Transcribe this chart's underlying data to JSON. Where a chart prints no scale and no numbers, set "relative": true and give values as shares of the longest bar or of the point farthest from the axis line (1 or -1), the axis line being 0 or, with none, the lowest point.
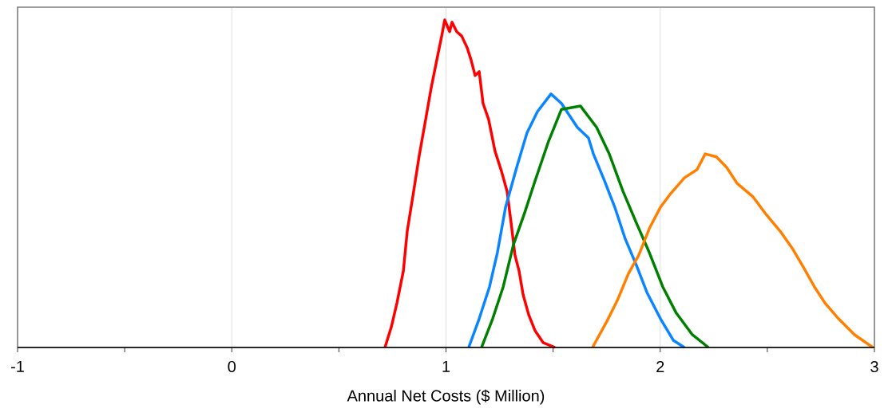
{
  "chart_data": {
    "type": "line",
    "relative": true,
    "xlabel": "Annual Net Costs ($ Million)",
    "xlim": [
      -1,
      3
    ],
    "xticks": [
      -1,
      {
        "value": -0.5,
        "label": null
      },
      0,
      {
        "value": 0.5,
        "label": null
      },
      1,
      {
        "value": 1.5,
        "label": null
      },
      2,
      {
        "value": 2.5,
        "label": null
      },
      3
    ],
    "grid": "x",
    "marker": "none",
    "line_style": "solid",
    "series": [
      {
        "color": "#ff0000",
        "x": [
          0.715,
          0.745,
          0.771,
          0.801,
          0.819,
          0.849,
          0.875,
          0.905,
          0.931,
          0.961,
          0.98,
          0.994,
          1.017,
          1.028,
          1.05,
          1.073,
          1.099,
          1.117,
          1.136,
          1.155,
          1.173,
          1.199,
          1.229,
          1.259,
          1.285,
          1.304,
          1.322,
          1.341,
          1.36,
          1.386,
          1.416,
          1.453,
          1.509
        ],
        "values": [
          0,
          0.063,
          0.136,
          0.234,
          0.355,
          0.477,
          0.586,
          0.696,
          0.793,
          0.891,
          0.951,
          1,
          0.964,
          0.993,
          0.964,
          0.951,
          0.915,
          0.878,
          0.83,
          0.842,
          0.745,
          0.696,
          0.599,
          0.538,
          0.477,
          0.38,
          0.282,
          0.234,
          0.161,
          0.1,
          0.051,
          0.015,
          0
        ]
      },
      {
        "color": "#0a84ff",
        "x": [
          1.106,
          1.155,
          1.203,
          1.24,
          1.278,
          1.33,
          1.378,
          1.427,
          1.49,
          1.539,
          1.613,
          1.665,
          1.688,
          1.74,
          1.788,
          1.837,
          1.889,
          1.938,
          2.001,
          2.061,
          2.113
        ],
        "values": [
          0,
          0.088,
          0.185,
          0.29,
          0.428,
          0.55,
          0.655,
          0.72,
          0.774,
          0.745,
          0.672,
          0.64,
          0.591,
          0.509,
          0.428,
          0.331,
          0.251,
          0.168,
          0.088,
          0.022,
          0
        ]
      },
      {
        "color": "#008000",
        "x": [
          1.166,
          1.218,
          1.267,
          1.315,
          1.367,
          1.416,
          1.479,
          1.539,
          1.628,
          1.703,
          1.762,
          1.826,
          1.889,
          1.949,
          2.012,
          2.075,
          2.15,
          2.225
        ],
        "values": [
          0,
          0.088,
          0.185,
          0.314,
          0.411,
          0.509,
          0.63,
          0.727,
          0.737,
          0.672,
          0.591,
          0.477,
          0.38,
          0.29,
          0.185,
          0.105,
          0.039,
          0
        ]
      },
      {
        "color": "#ff8000",
        "x": [
          1.684,
          1.751,
          1.8,
          1.852,
          1.9,
          1.949,
          2.001,
          2.049,
          2.113,
          2.172,
          2.21,
          2.262,
          2.31,
          2.359,
          2.433,
          2.497,
          2.56,
          2.62,
          2.672,
          2.72,
          2.769,
          2.832,
          2.907,
          2.993
        ],
        "values": [
          0,
          0.08,
          0.144,
          0.226,
          0.282,
          0.363,
          0.428,
          0.47,
          0.518,
          0.543,
          0.591,
          0.582,
          0.55,
          0.501,
          0.46,
          0.404,
          0.355,
          0.299,
          0.241,
          0.185,
          0.136,
          0.088,
          0.039,
          0
        ]
      }
    ]
  }
}
